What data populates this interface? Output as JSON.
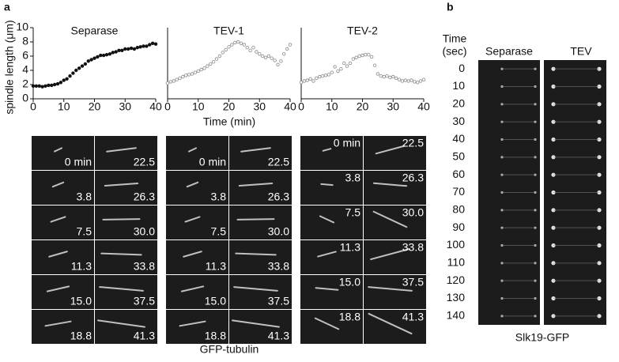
{
  "panel_labels": [
    "a",
    "b"
  ],
  "chart_data": [
    {
      "type": "scatter",
      "title": "Separase",
      "y_label": "spindle length (μm)",
      "color": "#111111",
      "filled": true,
      "xlim": [
        0,
        40
      ],
      "xticks": [
        0,
        10,
        20,
        30,
        40
      ],
      "ylim": [
        0,
        10
      ],
      "yticks": [
        0,
        2,
        4,
        6,
        8,
        10
      ],
      "x": [
        0,
        1,
        2,
        3,
        4,
        5,
        6,
        7,
        8,
        9,
        10,
        11,
        12,
        13,
        14,
        15,
        16,
        17,
        18,
        19,
        20,
        21,
        22,
        23,
        24,
        25,
        26,
        27,
        28,
        29,
        30,
        31,
        32,
        33,
        34,
        35,
        36,
        37,
        38,
        39,
        40
      ],
      "values": [
        1.8,
        1.8,
        1.8,
        1.7,
        1.8,
        1.9,
        1.9,
        2.0,
        2.1,
        2.3,
        2.6,
        2.8,
        3.2,
        3.6,
        4.0,
        4.3,
        4.6,
        4.9,
        5.3,
        5.5,
        5.7,
        5.9,
        6.1,
        6.1,
        6.2,
        6.3,
        6.5,
        6.6,
        6.8,
        6.8,
        7.0,
        7.0,
        7.1,
        7.0,
        7.2,
        7.3,
        7.4,
        7.4,
        7.6,
        7.8,
        7.7
      ]
    },
    {
      "type": "scatter",
      "title": "TEV-1",
      "x_label": "Time (min)",
      "color": "#888888",
      "filled": false,
      "xlim": [
        0,
        40
      ],
      "xticks": [
        0,
        10,
        20,
        30,
        40
      ],
      "ylim": [
        0,
        10
      ],
      "x": [
        0,
        1,
        2,
        3,
        4,
        5,
        6,
        7,
        8,
        9,
        10,
        11,
        12,
        13,
        14,
        15,
        16,
        17,
        18,
        19,
        20,
        21,
        22,
        23,
        24,
        25,
        26,
        27,
        28,
        29,
        30,
        31,
        32,
        33,
        34,
        35,
        36,
        37,
        38,
        39,
        40
      ],
      "values": [
        2.2,
        2.4,
        2.5,
        2.7,
        2.9,
        3.1,
        3.3,
        3.4,
        3.5,
        3.7,
        3.9,
        4.1,
        4.3,
        4.6,
        4.9,
        5.2,
        5.6,
        6.0,
        6.5,
        6.9,
        7.3,
        7.6,
        7.9,
        8.0,
        7.8,
        7.6,
        7.2,
        6.8,
        7.2,
        6.6,
        6.3,
        6.0,
        5.8,
        6.0,
        5.7,
        5.4,
        4.8,
        5.3,
        6.3,
        7.0,
        7.6
      ]
    },
    {
      "type": "scatter",
      "title": "TEV-2",
      "color": "#888888",
      "filled": false,
      "xlim": [
        0,
        40
      ],
      "xticks": [
        0,
        10,
        20,
        30,
        40
      ],
      "ylim": [
        0,
        10
      ],
      "x": [
        0,
        1,
        2,
        3,
        4,
        5,
        6,
        7,
        8,
        9,
        10,
        11,
        12,
        13,
        14,
        15,
        16,
        17,
        18,
        19,
        20,
        21,
        22,
        23,
        24,
        25,
        26,
        27,
        28,
        29,
        30,
        31,
        32,
        33,
        34,
        35,
        36,
        37,
        38,
        39,
        40
      ],
      "values": [
        2.3,
        2.5,
        2.6,
        2.8,
        2.5,
        2.9,
        3.1,
        3.2,
        3.3,
        3.4,
        3.7,
        4.5,
        3.9,
        4.2,
        5.0,
        4.6,
        5.0,
        5.6,
        5.8,
        6.0,
        6.1,
        6.2,
        6.2,
        5.9,
        4.7,
        3.5,
        3.2,
        3.1,
        3.2,
        3.0,
        3.1,
        2.9,
        2.7,
        2.5,
        2.6,
        2.5,
        2.6,
        2.4,
        2.3,
        2.5,
        2.7
      ]
    }
  ],
  "image_groups": [
    {
      "labels": [
        "0 min",
        "3.8",
        "7.5",
        "11.3",
        "15.0",
        "18.8",
        "22.5",
        "26.3",
        "30.0",
        "33.8",
        "37.5",
        "41.3"
      ]
    },
    {
      "labels": [
        "0 min",
        "3.8",
        "7.5",
        "11.3",
        "15.0",
        "18.8",
        "22.5",
        "26.3",
        "30.0",
        "33.8",
        "37.5",
        "41.3"
      ]
    },
    {
      "labels": [
        "0 min",
        "3.8",
        "7.5",
        "11.3",
        "15.0",
        "18.8",
        "22.5",
        "26.3",
        "30.0",
        "33.8",
        "37.5",
        "41.3"
      ]
    }
  ],
  "images_caption": "GFP-tubulin",
  "kymograph": {
    "time_header": [
      "Time",
      "(sec)"
    ],
    "columns": [
      "Separase",
      "TEV"
    ],
    "times": [
      0,
      10,
      20,
      30,
      40,
      50,
      60,
      70,
      80,
      90,
      100,
      110,
      120,
      130,
      140
    ],
    "caption": "Slk19-GFP"
  }
}
